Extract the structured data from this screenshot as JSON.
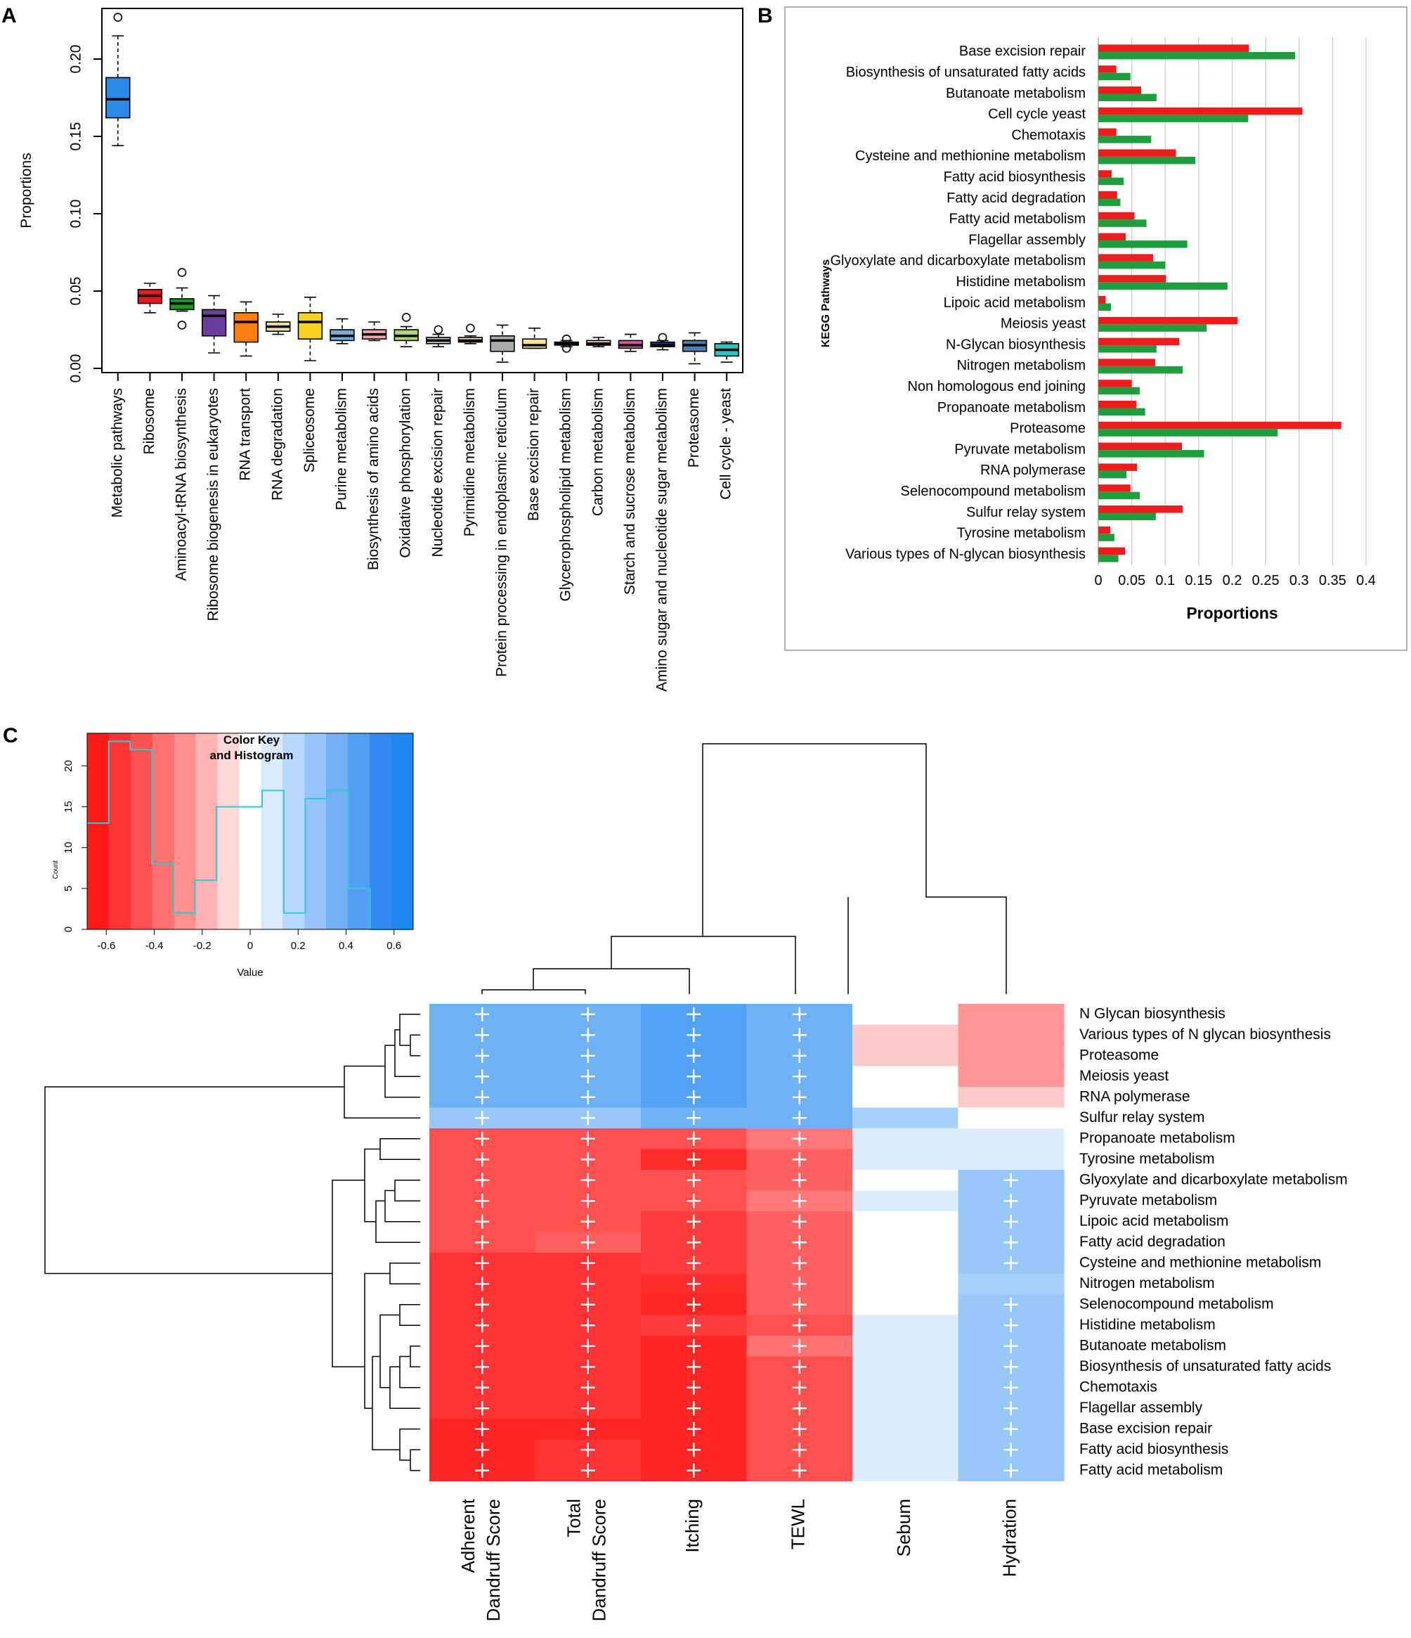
{
  "panels": {
    "a": "A",
    "b": "B",
    "c": "C"
  },
  "chart_data": [
    {
      "id": "A",
      "type": "boxplot",
      "ylabel": "Proportions",
      "xlabel": "",
      "ylim": [
        0,
        0.23
      ],
      "yticks": [
        0.0,
        0.05,
        0.1,
        0.15,
        0.2
      ],
      "ytick_labels": [
        "0.00",
        "0.05",
        "0.10",
        "0.15",
        "0.20"
      ],
      "categories": [
        "Metabolic pathways",
        "Ribosome",
        "Aminoacyl-tRNA biosynthesis",
        "Ribosome biogenesis in eukaryotes",
        "RNA transport",
        "RNA degradation",
        "Spliceosome",
        "Purine metabolism",
        "Biosynthesis of amino acids",
        "Oxidative phosphorylation",
        "Nucleotide excision repair",
        "Pyrimidine metabolism",
        "Protein processing in endoplasmic reticulum",
        "Base excision repair",
        "Glycerophospholipid metabolism",
        "Carbon metabolism",
        "Starch and sucrose metabolism",
        "Amino sugar and nucleotide sugar metabolism",
        "Proteasome",
        "Cell cycle - yeast"
      ],
      "boxes": [
        {
          "min": 0.144,
          "q1": 0.162,
          "median": 0.174,
          "q3": 0.188,
          "max": 0.215,
          "outliers": [
            0.227
          ],
          "color": "#2b8ae6"
        },
        {
          "min": 0.036,
          "q1": 0.042,
          "median": 0.047,
          "q3": 0.051,
          "max": 0.055,
          "outliers": [],
          "color": "#e31a1c"
        },
        {
          "min": 0.037,
          "q1": 0.038,
          "median": 0.042,
          "q3": 0.045,
          "max": 0.052,
          "outliers": [
            0.062,
            0.028
          ],
          "color": "#1a9a1a"
        },
        {
          "min": 0.01,
          "q1": 0.021,
          "median": 0.034,
          "q3": 0.038,
          "max": 0.047,
          "outliers": [],
          "color": "#6a3d9a"
        },
        {
          "min": 0.008,
          "q1": 0.017,
          "median": 0.03,
          "q3": 0.036,
          "max": 0.043,
          "outliers": [],
          "color": "#ff7f0e"
        },
        {
          "min": 0.022,
          "q1": 0.024,
          "median": 0.027,
          "q3": 0.03,
          "max": 0.035,
          "outliers": [],
          "color": "#f2e0a0"
        },
        {
          "min": 0.005,
          "q1": 0.019,
          "median": 0.03,
          "q3": 0.036,
          "max": 0.046,
          "outliers": [],
          "color": "#f5d320"
        },
        {
          "min": 0.016,
          "q1": 0.018,
          "median": 0.021,
          "q3": 0.025,
          "max": 0.032,
          "outliers": [],
          "color": "#6aaee0"
        },
        {
          "min": 0.018,
          "q1": 0.019,
          "median": 0.022,
          "q3": 0.025,
          "max": 0.03,
          "outliers": [],
          "color": "#f4a4a4"
        },
        {
          "min": 0.014,
          "q1": 0.018,
          "median": 0.021,
          "q3": 0.025,
          "max": 0.027,
          "outliers": [
            0.033
          ],
          "color": "#a6d96a"
        },
        {
          "min": 0.014,
          "q1": 0.016,
          "median": 0.018,
          "q3": 0.02,
          "max": 0.022,
          "outliers": [
            0.025
          ],
          "color": "#bdbdbd"
        },
        {
          "min": 0.016,
          "q1": 0.017,
          "median": 0.018,
          "q3": 0.02,
          "max": 0.021,
          "outliers": [
            0.026
          ],
          "color": "#f5deb3"
        },
        {
          "min": 0.004,
          "q1": 0.011,
          "median": 0.018,
          "q3": 0.021,
          "max": 0.028,
          "outliers": [],
          "color": "#aaaaaa"
        },
        {
          "min": 0.013,
          "q1": 0.013,
          "median": 0.015,
          "q3": 0.019,
          "max": 0.026,
          "outliers": [],
          "color": "#f5e58a"
        },
        {
          "min": 0.014,
          "q1": 0.015,
          "median": 0.016,
          "q3": 0.017,
          "max": 0.018,
          "outliers": [
            0.019,
            0.013
          ],
          "color": "#e6e6e6"
        },
        {
          "min": 0.014,
          "q1": 0.015,
          "median": 0.016,
          "q3": 0.018,
          "max": 0.02,
          "outliers": [],
          "color": "#f4c9b2"
        },
        {
          "min": 0.011,
          "q1": 0.013,
          "median": 0.015,
          "q3": 0.018,
          "max": 0.022,
          "outliers": [],
          "color": "#d45a9c"
        },
        {
          "min": 0.012,
          "q1": 0.014,
          "median": 0.015,
          "q3": 0.017,
          "max": 0.018,
          "outliers": [
            0.02
          ],
          "color": "#1f2a8a"
        },
        {
          "min": 0.003,
          "q1": 0.011,
          "median": 0.015,
          "q3": 0.018,
          "max": 0.023,
          "outliers": [],
          "color": "#4a7fb0"
        },
        {
          "min": 0.004,
          "q1": 0.008,
          "median": 0.012,
          "q3": 0.016,
          "max": 0.017,
          "outliers": [],
          "color": "#2ec4c4"
        }
      ]
    },
    {
      "id": "B",
      "type": "bar",
      "orientation": "horizontal",
      "xlabel": "Proportions",
      "ylabel": "KEGG Pathways",
      "xlim": [
        0,
        0.4
      ],
      "xticks": [
        0,
        0.05,
        0.1,
        0.15,
        0.2,
        0.25,
        0.3,
        0.35,
        0.4
      ],
      "xtick_labels": [
        "0",
        "0.05",
        "0.1",
        "0.15",
        "0.2",
        "0.25",
        "0.3",
        "0.35",
        "0.4"
      ],
      "grid": true,
      "categories": [
        "Base excision repair",
        "Biosynthesis of unsaturated fatty acids",
        "Butanoate metabolism",
        "Cell cycle yeast",
        "Chemotaxis",
        "Cysteine and methionine metabolism",
        "Fatty acid biosynthesis",
        "Fatty acid degradation",
        "Fatty acid metabolism",
        "Flagellar assembly",
        "Glyoxylate and dicarboxylate metabolism",
        "Histidine metabolism",
        "Lipoic acid metabolism",
        "Meiosis yeast",
        "N-Glycan biosynthesis",
        "Nitrogen metabolism",
        "Non homologous end joining",
        "Propanoate metabolism",
        "Proteasome",
        "Pyruvate metabolism",
        "RNA polymerase",
        "Selenocompound metabolism",
        "Sulfur relay system",
        "Tyrosine metabolism",
        "Various types of N-glycan biosynthesis"
      ],
      "series": [
        {
          "color": "#ee1c1c",
          "values": [
            0.225,
            0.027,
            0.064,
            0.305,
            0.027,
            0.116,
            0.02,
            0.028,
            0.054,
            0.041,
            0.082,
            0.101,
            0.011,
            0.208,
            0.121,
            0.085,
            0.05,
            0.057,
            0.363,
            0.125,
            0.058,
            0.048,
            0.126,
            0.018,
            0.04
          ]
        },
        {
          "color": "#1e9e3e",
          "values": [
            0.294,
            0.048,
            0.087,
            0.224,
            0.079,
            0.145,
            0.038,
            0.033,
            0.072,
            0.133,
            0.1,
            0.193,
            0.019,
            0.162,
            0.087,
            0.126,
            0.062,
            0.07,
            0.268,
            0.158,
            0.042,
            0.062,
            0.086,
            0.024,
            0.03
          ]
        }
      ]
    },
    {
      "id": "C",
      "type": "heatmap",
      "columns": [
        "Adherent Dandruff Score",
        "Total Dandruff Score",
        "Itching",
        "TEWL",
        "Sebum",
        "Hydration"
      ],
      "column_label_lines": [
        [
          "Adherent",
          "Dandruff Score"
        ],
        [
          "Total",
          "Dandruff Score"
        ],
        [
          "Itching"
        ],
        [
          "TEWL"
        ],
        [
          "Sebum"
        ],
        [
          "Hydration"
        ]
      ],
      "rows": [
        "N Glycan biosynthesis",
        "Various types of N glycan biosynthesis",
        "Proteasome",
        "Meiosis yeast",
        "RNA polymerase",
        "Sulfur relay system",
        "Propanoate metabolism",
        "Tyrosine metabolism",
        "Glyoxylate and dicarboxylate metabolism",
        "Pyruvate metabolism",
        "Lipoic acid metabolism",
        "Fatty acid degradation",
        "Cysteine and methionine metabolism",
        "Nitrogen metabolism",
        "Selenocompound metabolism",
        "Histidine metabolism",
        "Butanoate metabolism",
        "Biosynthesis of unsaturated fatty acids",
        "Chemotaxis",
        "Flagellar assembly",
        "Base excision repair",
        "Fatty acid biosynthesis",
        "Fatty acid metabolism"
      ],
      "values": [
        [
          0.42,
          0.42,
          0.5,
          0.42,
          0.0,
          -0.3
        ],
        [
          0.42,
          0.42,
          0.5,
          0.42,
          -0.15,
          -0.3
        ],
        [
          0.42,
          0.42,
          0.5,
          0.42,
          -0.15,
          -0.3
        ],
        [
          0.42,
          0.42,
          0.5,
          0.42,
          0.0,
          -0.3
        ],
        [
          0.42,
          0.42,
          0.5,
          0.42,
          0.0,
          -0.15
        ],
        [
          0.3,
          0.3,
          0.42,
          0.42,
          0.25,
          0.0
        ],
        [
          -0.5,
          -0.5,
          -0.5,
          -0.38,
          0.1,
          0.1
        ],
        [
          -0.5,
          -0.5,
          -0.6,
          -0.45,
          0.1,
          0.1
        ],
        [
          -0.5,
          -0.5,
          -0.5,
          -0.45,
          0.0,
          0.3
        ],
        [
          -0.5,
          -0.5,
          -0.5,
          -0.38,
          0.1,
          0.3
        ],
        [
          -0.5,
          -0.5,
          -0.55,
          -0.45,
          0.0,
          0.3
        ],
        [
          -0.5,
          -0.45,
          -0.55,
          -0.45,
          0.0,
          0.3
        ],
        [
          -0.58,
          -0.58,
          -0.55,
          -0.45,
          0.0,
          0.3
        ],
        [
          -0.58,
          -0.58,
          -0.6,
          -0.45,
          0.0,
          0.25
        ],
        [
          -0.58,
          -0.58,
          -0.62,
          -0.45,
          0.0,
          0.3
        ],
        [
          -0.58,
          -0.58,
          -0.55,
          -0.5,
          0.1,
          0.3
        ],
        [
          -0.58,
          -0.58,
          -0.62,
          -0.4,
          0.1,
          0.3
        ],
        [
          -0.58,
          -0.58,
          -0.62,
          -0.5,
          0.1,
          0.3
        ],
        [
          -0.58,
          -0.58,
          -0.62,
          -0.5,
          0.1,
          0.3
        ],
        [
          -0.58,
          -0.58,
          -0.62,
          -0.5,
          0.1,
          0.3
        ],
        [
          -0.62,
          -0.62,
          -0.62,
          -0.5,
          0.1,
          0.3
        ],
        [
          -0.62,
          -0.58,
          -0.62,
          -0.5,
          0.1,
          0.3
        ],
        [
          -0.62,
          -0.58,
          -0.62,
          -0.5,
          0.1,
          0.3
        ]
      ],
      "significant": [
        [
          true,
          true,
          true,
          true,
          false,
          false
        ],
        [
          true,
          true,
          true,
          true,
          false,
          false
        ],
        [
          true,
          true,
          true,
          true,
          false,
          false
        ],
        [
          true,
          true,
          true,
          true,
          false,
          false
        ],
        [
          true,
          true,
          true,
          true,
          false,
          false
        ],
        [
          true,
          true,
          true,
          true,
          false,
          false
        ],
        [
          true,
          true,
          true,
          true,
          false,
          false
        ],
        [
          true,
          true,
          true,
          true,
          false,
          false
        ],
        [
          true,
          true,
          true,
          true,
          false,
          true
        ],
        [
          true,
          true,
          true,
          true,
          false,
          true
        ],
        [
          true,
          true,
          true,
          true,
          false,
          true
        ],
        [
          true,
          true,
          true,
          true,
          false,
          true
        ],
        [
          true,
          true,
          true,
          true,
          false,
          true
        ],
        [
          true,
          true,
          true,
          true,
          false,
          false
        ],
        [
          true,
          true,
          true,
          true,
          false,
          true
        ],
        [
          true,
          true,
          true,
          true,
          false,
          true
        ],
        [
          true,
          true,
          true,
          true,
          false,
          true
        ],
        [
          true,
          true,
          true,
          true,
          false,
          true
        ],
        [
          true,
          true,
          true,
          true,
          false,
          true
        ],
        [
          true,
          true,
          true,
          true,
          false,
          true
        ],
        [
          true,
          true,
          true,
          true,
          false,
          true
        ],
        [
          true,
          true,
          true,
          true,
          false,
          true
        ],
        [
          true,
          true,
          true,
          true,
          false,
          true
        ]
      ],
      "color_key": {
        "title_lines": [
          "Color Key",
          "and Histogram"
        ],
        "xlabel": "Value",
        "ylabel": "Count",
        "xlim": [
          -0.68,
          0.68
        ],
        "ylim": [
          0,
          24
        ],
        "xticks": [
          -0.6,
          -0.4,
          -0.2,
          0,
          0.2,
          0.4,
          0.6
        ],
        "xtick_labels": [
          "-0.6",
          "-0.4",
          "-0.2",
          "0",
          "0.2",
          "0.4",
          "0.6"
        ],
        "yticks": [
          0,
          5,
          10,
          15,
          20
        ],
        "ytick_labels": [
          "0",
          "5",
          "10",
          "15",
          "20"
        ],
        "colors": [
          "#ff1a1a",
          "#ff3535",
          "#ff5252",
          "#ff7070",
          "#ff9090",
          "#ffb3b3",
          "#ffd8d8",
          "#ffffff",
          "#d9eafd",
          "#b7d7fb",
          "#96c4f8",
          "#74b0f6",
          "#539df3",
          "#3189f1",
          "#1e88f0"
        ],
        "hist_bins": [
          -0.68,
          -0.59,
          -0.5,
          -0.41,
          -0.32,
          -0.23,
          -0.14,
          -0.05,
          0.05,
          0.14,
          0.23,
          0.32,
          0.41,
          0.5,
          0.59,
          0.68
        ],
        "hist_counts": [
          13,
          23,
          22,
          8,
          2,
          6,
          15,
          15,
          17,
          2,
          16,
          17,
          5,
          0,
          0
        ],
        "hist_color": "#2ecbd6"
      },
      "cell_colors": {
        "positive": "#1e88f0",
        "negative": "#ff1a1a",
        "zero": "#ffffff",
        "mark": "#ffffff"
      }
    }
  ]
}
